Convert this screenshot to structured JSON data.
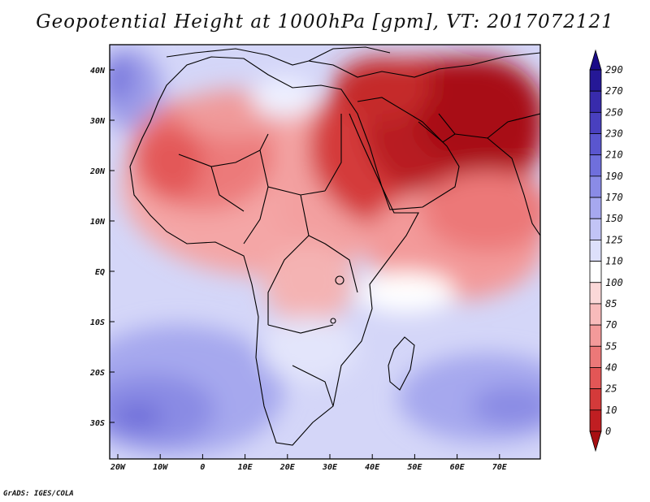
{
  "title": "Geopotential Height at 1000hPa [gpm], VT: 2017072121",
  "footer": "GrADS: IGES/COLA",
  "map": {
    "variable": "Geopotential Height",
    "level": "1000hPa",
    "units": "gpm",
    "valid_time": "2017072121",
    "lon_labels": [
      "20W",
      "10W",
      "0",
      "10E",
      "20E",
      "30E",
      "40E",
      "50E",
      "60E",
      "70E"
    ],
    "lat_labels": [
      "40N",
      "30N",
      "20N",
      "10N",
      "EQ",
      "10S",
      "20S",
      "30S"
    ],
    "colorbar": {
      "levels": [
        "0",
        "10",
        "25",
        "40",
        "55",
        "70",
        "85",
        "100",
        "110",
        "125",
        "150",
        "170",
        "190",
        "210",
        "230",
        "250",
        "270",
        "290"
      ],
      "colors": [
        "#a80f12",
        "#c01e22",
        "#d43a3a",
        "#e35656",
        "#ec7878",
        "#f39a9a",
        "#f8bbbb",
        "#fbd8d8",
        "#ffffff",
        "#dde0fb",
        "#c2c4f6",
        "#a6a8ef",
        "#8a8be6",
        "#6f6fdc",
        "#5a56cf",
        "#4940bf",
        "#382bac",
        "#251896",
        "#1a0b88"
      ]
    }
  }
}
